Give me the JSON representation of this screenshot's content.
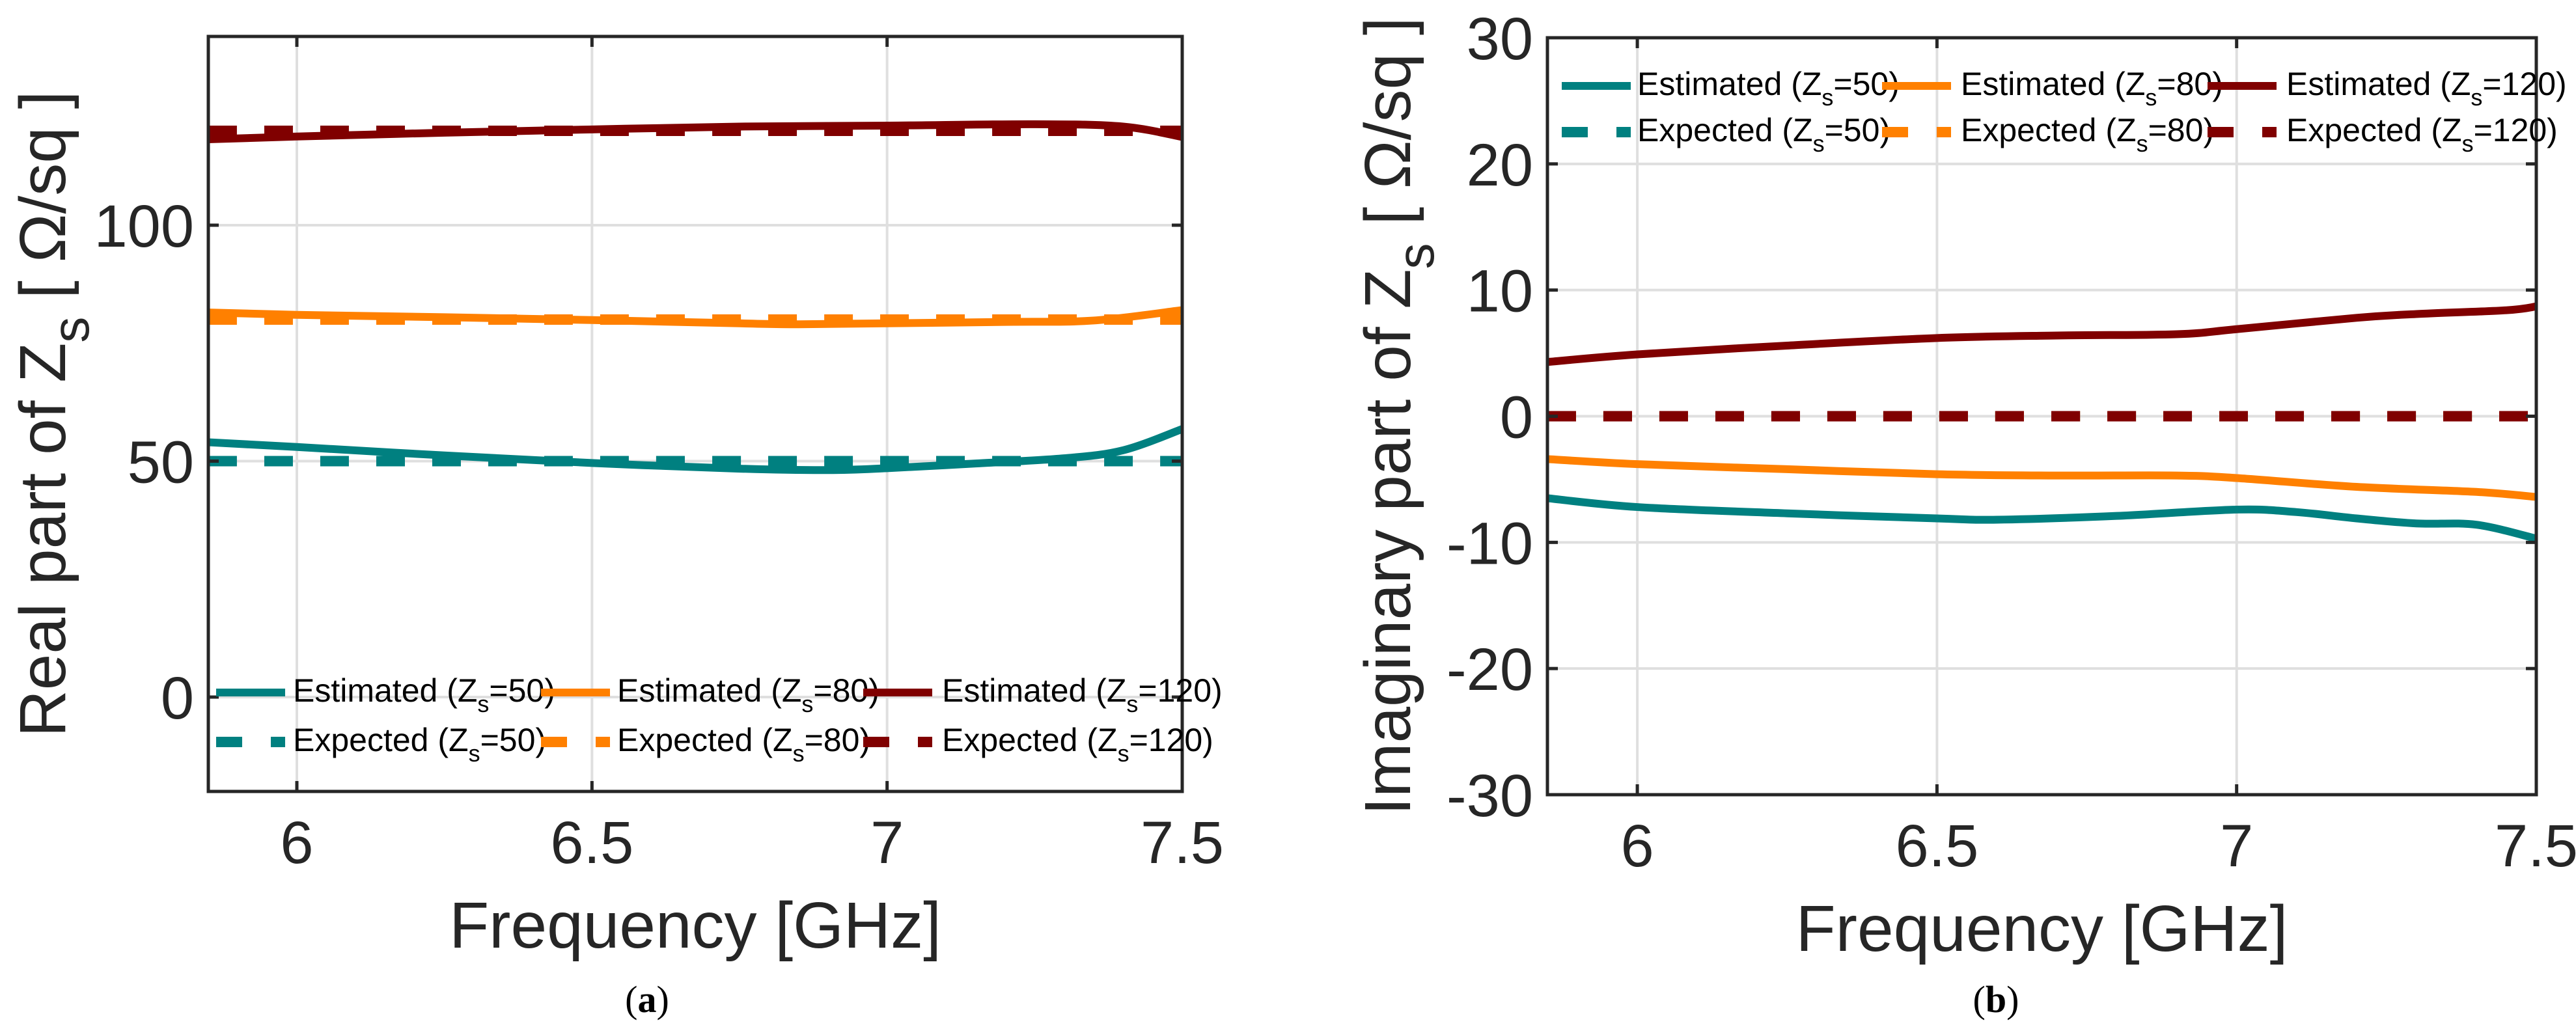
{
  "colors": {
    "z50": "#008080",
    "z80": "#ff8000",
    "z120": "#800000",
    "axis": "#262626",
    "grid": "#dfdfdf"
  },
  "chart_data": [
    {
      "type": "line",
      "caption": "(a)",
      "xlabel": "Frequency [GHz]",
      "ylabel": {
        "prefix": "Real part of Z",
        "sub": "s",
        "suffix": " [ Ω/sq ]"
      },
      "xlim": [
        5.85,
        7.5
      ],
      "ylim": [
        -20,
        140
      ],
      "xticks": [
        6,
        6.5,
        7,
        7.5
      ],
      "xtick_labels": [
        "6",
        "6.5",
        "7",
        "7.5"
      ],
      "yticks": [
        0,
        50,
        100
      ],
      "ytick_labels": [
        "0",
        "50",
        "100"
      ],
      "grid": true,
      "legend_position": "bottom",
      "series": [
        {
          "name": {
            "prefix": "Estimated (Z",
            "sub": "s",
            "suffix": "=50)"
          },
          "color_key": "z50",
          "style": "solid",
          "x": [
            5.85,
            6.0,
            6.25,
            6.5,
            6.75,
            6.9,
            7.0,
            7.15,
            7.3,
            7.4,
            7.5
          ],
          "y": [
            54,
            53,
            51.2,
            49.6,
            48.4,
            48.1,
            48.5,
            49.5,
            50.6,
            52.3,
            56.8
          ]
        },
        {
          "name": {
            "prefix": "Estimated (Z",
            "sub": "s",
            "suffix": "=80)"
          },
          "color_key": "z80",
          "style": "solid",
          "x": [
            5.85,
            6.0,
            6.25,
            6.5,
            6.75,
            6.85,
            7.0,
            7.2,
            7.35,
            7.5
          ],
          "y": [
            81.5,
            81.0,
            80.5,
            79.9,
            79.2,
            79.0,
            79.2,
            79.5,
            79.8,
            82.0
          ]
        },
        {
          "name": {
            "prefix": "Estimated (Z",
            "sub": "s",
            "suffix": "=120)"
          },
          "color_key": "z120",
          "style": "solid",
          "x": [
            5.85,
            6.0,
            6.25,
            6.5,
            6.75,
            7.0,
            7.25,
            7.4,
            7.5
          ],
          "y": [
            118.2,
            118.8,
            119.6,
            120.3,
            120.9,
            121.1,
            121.4,
            120.9,
            118.7
          ]
        },
        {
          "name": {
            "prefix": "Expected (Z",
            "sub": "s",
            "suffix": "=50)"
          },
          "color_key": "z50",
          "style": "dashed",
          "x": [
            5.85,
            7.5
          ],
          "y": [
            50,
            50
          ]
        },
        {
          "name": {
            "prefix": "Expected (Z",
            "sub": "s",
            "suffix": "=80)"
          },
          "color_key": "z80",
          "style": "dashed",
          "x": [
            5.85,
            7.5
          ],
          "y": [
            80,
            80
          ]
        },
        {
          "name": {
            "prefix": "Expected (Z",
            "sub": "s",
            "suffix": "=120)"
          },
          "color_key": "z120",
          "style": "dashed",
          "x": [
            5.85,
            7.5
          ],
          "y": [
            120,
            120
          ]
        }
      ]
    },
    {
      "type": "line",
      "caption": "(b)",
      "xlabel": "Frequency [GHz]",
      "ylabel": {
        "prefix": "Imaginary part of Z",
        "sub": "s",
        "suffix": " [ Ω/sq ]"
      },
      "xlim": [
        5.85,
        7.5
      ],
      "ylim": [
        -30,
        30
      ],
      "xticks": [
        6,
        6.5,
        7,
        7.5
      ],
      "xtick_labels": [
        "6",
        "6.5",
        "7",
        "7.5"
      ],
      "yticks": [
        -30,
        -20,
        -10,
        0,
        10,
        20,
        30
      ],
      "ytick_labels": [
        "-30",
        "-20",
        "-10",
        "0",
        "10",
        "20",
        "30"
      ],
      "grid": true,
      "legend_position": "top",
      "series": [
        {
          "name": {
            "prefix": "Estimated (Z",
            "sub": "s",
            "suffix": "=50)"
          },
          "color_key": "z50",
          "style": "solid",
          "x": [
            5.85,
            6.0,
            6.25,
            6.5,
            6.6,
            6.8,
            7.0,
            7.1,
            7.2,
            7.3,
            7.4,
            7.5
          ],
          "y": [
            -6.5,
            -7.2,
            -7.7,
            -8.1,
            -8.2,
            -7.9,
            -7.4,
            -7.6,
            -8.1,
            -8.5,
            -8.6,
            -9.7
          ]
        },
        {
          "name": {
            "prefix": "Estimated (Z",
            "sub": "s",
            "suffix": "=80)"
          },
          "color_key": "z80",
          "style": "solid",
          "x": [
            5.85,
            6.0,
            6.25,
            6.5,
            6.7,
            6.9,
            7.0,
            7.2,
            7.4,
            7.5
          ],
          "y": [
            -3.4,
            -3.8,
            -4.2,
            -4.6,
            -4.7,
            -4.7,
            -4.9,
            -5.6,
            -6.0,
            -6.4
          ]
        },
        {
          "name": {
            "prefix": "Estimated (Z",
            "sub": "s",
            "suffix": "=120)"
          },
          "color_key": "z120",
          "style": "solid",
          "x": [
            5.85,
            6.0,
            6.25,
            6.5,
            6.7,
            6.9,
            7.0,
            7.2,
            7.3,
            7.45,
            7.5
          ],
          "y": [
            4.3,
            4.9,
            5.6,
            6.2,
            6.4,
            6.5,
            6.9,
            7.8,
            8.1,
            8.4,
            8.7
          ]
        },
        {
          "name": {
            "prefix": "Expected (Z",
            "sub": "s",
            "suffix": "=50)"
          },
          "color_key": "z50",
          "style": "dashed",
          "x": [
            5.85,
            7.5
          ],
          "y": [
            0,
            0
          ]
        },
        {
          "name": {
            "prefix": "Expected (Z",
            "sub": "s",
            "suffix": "=80)"
          },
          "color_key": "z80",
          "style": "dashed",
          "x": [
            5.85,
            7.5
          ],
          "y": [
            0,
            0
          ]
        },
        {
          "name": {
            "prefix": "Expected (Z",
            "sub": "s",
            "suffix": "=120)"
          },
          "color_key": "z120",
          "style": "dashed",
          "x": [
            5.85,
            7.5
          ],
          "y": [
            0,
            0
          ]
        }
      ]
    }
  ]
}
